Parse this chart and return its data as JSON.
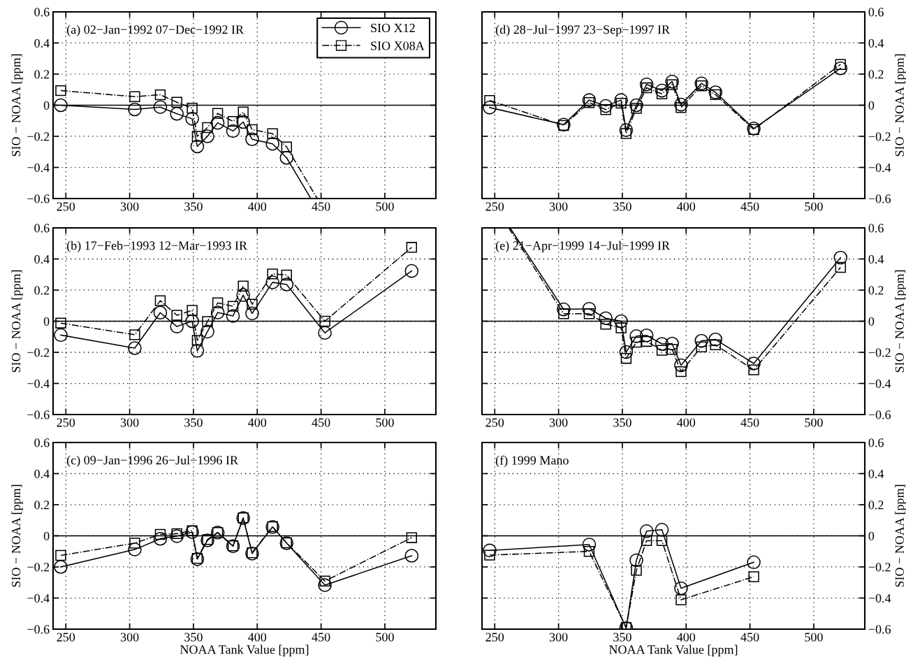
{
  "chart_data": [
    {
      "type": "line",
      "title": "(a) 02−Jan−1992 07−Dec−1992 IR",
      "ylabel": "SIO − NOAA [ppm]",
      "xlim": [
        240,
        540
      ],
      "xticks": [
        250,
        300,
        350,
        400,
        450,
        500
      ],
      "ylim": [
        -0.6,
        0.6
      ],
      "yticks": [
        {
          "value": -0.6,
          "label": "−0.6"
        },
        {
          "value": -0.4,
          "label": "−0.4"
        },
        {
          "value": -0.2,
          "label": "−0.2"
        },
        0,
        0.2,
        0.4,
        0.6
      ],
      "grid": true,
      "legend": "top right",
      "ref_lines": [
        {
          "axis": "y",
          "value": 0,
          "color": "#000000",
          "line_style": "solid"
        }
      ],
      "series": [
        {
          "name": "SIO X12",
          "color": "#000000",
          "marker": "circle",
          "line_style": "solid",
          "x": [
            246,
            304,
            324,
            337,
            349,
            353,
            361,
            369,
            381,
            389,
            396,
            412,
            423
          ],
          "values": [
            0.0,
            -0.027,
            -0.012,
            -0.055,
            -0.087,
            -0.265,
            -0.2,
            -0.113,
            -0.166,
            -0.108,
            -0.219,
            -0.248,
            -0.338
          ]
        },
        {
          "name": "SIO X08A",
          "color": "#000000",
          "marker": "square",
          "line_style": "dashdot",
          "x": [
            246,
            304,
            324,
            337,
            349,
            353,
            361,
            369,
            381,
            389,
            396,
            412,
            423
          ],
          "values": [
            0.094,
            0.055,
            0.067,
            0.019,
            -0.019,
            -0.2,
            -0.144,
            -0.053,
            -0.104,
            -0.044,
            -0.157,
            -0.183,
            -0.268
          ]
        },
        {
          "color": "#000000",
          "marker": "none",
          "line_style": "solid",
          "x": [
            423,
            442
          ],
          "values": [
            -0.338,
            -0.6
          ]
        },
        {
          "color": "#000000",
          "marker": "none",
          "line_style": "dashdot",
          "x": [
            423,
            447
          ],
          "values": [
            -0.268,
            -0.6
          ]
        }
      ]
    },
    {
      "type": "line",
      "title": "(d) 28−Jul−1997 23−Sep−1997 IR",
      "y2label": "SIO − NOAA [ppm]",
      "xlim": [
        240,
        540
      ],
      "xticks": [
        250,
        300,
        350,
        400,
        450,
        500
      ],
      "y2lim": [
        -0.6,
        0.6
      ],
      "y2ticks": [
        {
          "value": -0.6,
          "label": "−0.6"
        },
        {
          "value": -0.4,
          "label": "−0.4"
        },
        {
          "value": -0.2,
          "label": "−0.2"
        },
        0,
        0.2,
        0.4,
        0.6
      ],
      "grid": true,
      "ref_lines": [
        {
          "axis": "y2",
          "value": 0,
          "color": "#000000",
          "line_style": "solid"
        }
      ],
      "x": [
        246,
        304,
        324,
        337,
        349,
        353,
        361,
        369,
        381,
        389,
        396,
        412,
        423,
        453,
        521
      ],
      "series": [
        {
          "color": "#000000",
          "marker": "circle",
          "line_style": "solid",
          "axis": "y2",
          "values": [
            -0.015,
            -0.125,
            0.033,
            -0.005,
            0.033,
            -0.16,
            0.0,
            0.134,
            0.094,
            0.152,
            0.004,
            0.14,
            0.083,
            -0.15,
            0.237
          ]
        },
        {
          "color": "#000000",
          "marker": "square",
          "line_style": "dashdot",
          "axis": "y2",
          "values": [
            0.031,
            -0.13,
            0.017,
            -0.028,
            0.013,
            -0.182,
            -0.02,
            0.112,
            0.073,
            0.132,
            -0.015,
            0.125,
            0.068,
            -0.156,
            0.262
          ]
        }
      ]
    },
    {
      "type": "line",
      "title": "(b) 17−Feb−1993 12−Mar−1993 IR",
      "ylabel": "SIO − NOAA [ppm]",
      "xlim": [
        240,
        540
      ],
      "xticks": [
        250,
        300,
        350,
        400,
        450,
        500
      ],
      "ylim": [
        -0.6,
        0.6
      ],
      "yticks": [
        {
          "value": -0.6,
          "label": "−0.6"
        },
        {
          "value": -0.4,
          "label": "−0.4"
        },
        {
          "value": -0.2,
          "label": "−0.2"
        },
        0,
        0.2,
        0.4,
        0.6
      ],
      "grid": true,
      "ref_lines": [
        {
          "axis": "y",
          "value": 0,
          "color": "#000000",
          "line_style": "solid"
        }
      ],
      "x": [
        246,
        304,
        324,
        337,
        349,
        353,
        361,
        369,
        381,
        389,
        396,
        412,
        423,
        453,
        521
      ],
      "series": [
        {
          "color": "#000000",
          "marker": "circle",
          "line_style": "solid",
          "values": [
            -0.089,
            -0.173,
            0.055,
            -0.034,
            0.0,
            -0.19,
            -0.067,
            0.056,
            0.034,
            0.168,
            0.05,
            0.25,
            0.236,
            -0.075,
            0.323
          ]
        },
        {
          "color": "#000000",
          "marker": "square",
          "line_style": "dashdot",
          "values": [
            -0.012,
            -0.087,
            0.132,
            0.038,
            0.07,
            -0.123,
            -0.002,
            0.118,
            0.096,
            0.226,
            0.109,
            0.304,
            0.297,
            0.0,
            0.475
          ]
        }
      ]
    },
    {
      "type": "line",
      "title": "(e) 21−Apr−1999 14−Jul−1999 IR",
      "y2label": "SIO − NOAA [ppm]",
      "xlim": [
        240,
        540
      ],
      "xticks": [
        250,
        300,
        350,
        400,
        450,
        500
      ],
      "y2lim": [
        -0.6,
        0.6
      ],
      "y2ticks": [
        {
          "value": -0.6,
          "label": "−0.6"
        },
        {
          "value": -0.4,
          "label": "−0.4"
        },
        {
          "value": -0.2,
          "label": "−0.2"
        },
        0,
        0.2,
        0.4,
        0.6
      ],
      "grid": true,
      "ref_lines": [
        {
          "axis": "y2",
          "value": 0,
          "color": "#000000",
          "line_style": "solid"
        }
      ],
      "series": [
        {
          "color": "#000000",
          "marker": "circle",
          "line_style": "solid",
          "axis": "y2",
          "x": [
            304,
            324,
            337,
            349,
            353,
            361,
            369,
            381,
            389,
            396,
            412,
            423,
            453,
            521
          ],
          "values": [
            0.076,
            0.08,
            0.019,
            0.0,
            -0.198,
            -0.096,
            -0.091,
            -0.146,
            -0.144,
            -0.283,
            -0.126,
            -0.117,
            -0.272,
            0.409
          ]
        },
        {
          "color": "#000000",
          "marker": "square",
          "line_style": "dashdot",
          "axis": "y2",
          "x": [
            304,
            324,
            337,
            349,
            353,
            361,
            369,
            381,
            389,
            396,
            412,
            423,
            453,
            521
          ],
          "values": [
            0.048,
            0.048,
            -0.019,
            -0.043,
            -0.239,
            -0.135,
            -0.13,
            -0.187,
            -0.181,
            -0.324,
            -0.165,
            -0.152,
            -0.313,
            0.346
          ]
        },
        {
          "color": "#000000",
          "marker": "none",
          "line_style": "solid",
          "axis": "y2",
          "x": [
            262,
            304
          ],
          "values": [
            0.6,
            0.076
          ]
        },
        {
          "color": "#000000",
          "marker": "none",
          "line_style": "dashdot",
          "axis": "y2",
          "x": [
            261,
            304
          ],
          "values": [
            0.6,
            0.048
          ]
        }
      ]
    },
    {
      "type": "line",
      "title": "(c) 09−Jan−1996 26−Jul−1996 IR",
      "xlabel": "NOAA Tank Value [ppm]",
      "ylabel": "SIO − NOAA [ppm]",
      "xlim": [
        240,
        540
      ],
      "xticks": [
        250,
        300,
        350,
        400,
        450,
        500
      ],
      "ylim": [
        -0.6,
        0.6
      ],
      "yticks": [
        {
          "value": -0.6,
          "label": "−0.6"
        },
        {
          "value": -0.4,
          "label": "−0.4"
        },
        {
          "value": -0.2,
          "label": "−0.2"
        },
        0,
        0.2,
        0.4,
        0.6
      ],
      "grid": true,
      "ref_lines": [
        {
          "axis": "y",
          "value": 0,
          "color": "#000000",
          "line_style": "solid"
        }
      ],
      "x": [
        246,
        304,
        324,
        337,
        349,
        353,
        361,
        369,
        381,
        389,
        396,
        412,
        423,
        453,
        521
      ],
      "series": [
        {
          "color": "#000000",
          "marker": "circle",
          "line_style": "solid",
          "values": [
            -0.2,
            -0.088,
            -0.019,
            -0.002,
            0.024,
            -0.15,
            -0.029,
            0.021,
            -0.067,
            0.114,
            -0.114,
            0.057,
            -0.047,
            -0.317,
            -0.128
          ]
        },
        {
          "color": "#000000",
          "marker": "square",
          "line_style": "dashdot",
          "values": [
            -0.126,
            -0.047,
            0.009,
            0.014,
            0.033,
            -0.145,
            -0.024,
            0.022,
            -0.064,
            0.116,
            -0.109,
            0.059,
            -0.045,
            -0.291,
            -0.012
          ]
        }
      ]
    },
    {
      "type": "line",
      "title": "(f) 1999 Mano",
      "xlabel": "NOAA Tank Value [ppm]",
      "y2label": "SIO − NOAA [ppm]",
      "xlim": [
        240,
        540
      ],
      "xticks": [
        250,
        300,
        350,
        400,
        450,
        500
      ],
      "y2lim": [
        -0.6,
        0.6
      ],
      "y2ticks": [
        {
          "value": -0.6,
          "label": "−0.6"
        },
        {
          "value": -0.4,
          "label": "−0.4"
        },
        {
          "value": -0.2,
          "label": "−0.2"
        },
        0,
        0.2,
        0.4,
        0.6
      ],
      "grid": true,
      "ref_lines": [
        {
          "axis": "y2",
          "value": 0,
          "color": "#000000",
          "line_style": "solid"
        }
      ],
      "x": [
        246,
        324,
        353,
        361,
        369,
        381,
        396,
        453
      ],
      "series": [
        {
          "color": "#000000",
          "marker": "circle",
          "line_style": "solid",
          "axis": "y2",
          "values": [
            -0.094,
            -0.056,
            -0.593,
            -0.157,
            0.03,
            0.039,
            -0.337,
            -0.17
          ]
        },
        {
          "color": "#000000",
          "marker": "square",
          "line_style": "dashdot",
          "axis": "y2",
          "values": [
            -0.124,
            -0.1,
            -0.59,
            -0.222,
            -0.031,
            -0.031,
            -0.411,
            -0.263
          ]
        }
      ]
    }
  ]
}
